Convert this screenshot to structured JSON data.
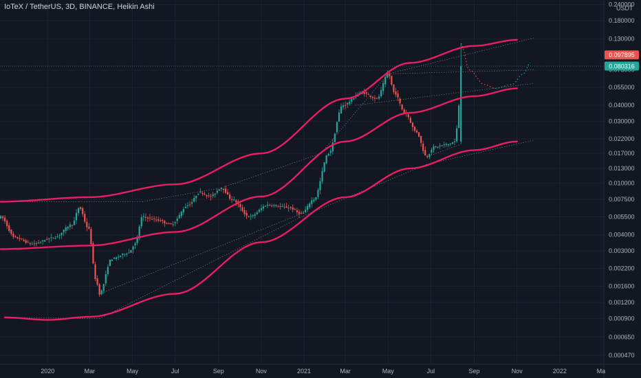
{
  "chart_title": "IoTeX / TetherUS, 3D, BINANCE, Heikin Ashi",
  "colors": {
    "background": "#131722",
    "up": "#26a69a",
    "down": "#ef5350",
    "channel": "#e91e63",
    "text": "#b2b5be"
  },
  "chart_data": {
    "type": "candlestick",
    "title": "IoTeX / TetherUS, 3D, BINANCE, Heikin Ashi",
    "y_unit": "USDT",
    "y_scale": "log",
    "ylim": [
      0.0004,
      0.26
    ],
    "y_ticks": [
      0.24,
      0.18,
      0.13,
      0.075,
      0.055,
      0.04,
      0.03,
      0.022,
      0.017,
      0.013,
      0.01,
      0.0075,
      0.0055,
      0.004,
      0.003,
      0.0022,
      0.0016,
      0.0012,
      0.0009,
      0.00065,
      0.00047
    ],
    "y_tick_labels": [
      "0.240000",
      "0.180000",
      "0.130000",
      "0.075000",
      "0.055000",
      "0.040000",
      "0.030000",
      "0.022000",
      "0.017000",
      "0.013000",
      "0.010000",
      "0.007500",
      "0.005500",
      "0.004000",
      "0.003000",
      "0.002200",
      "0.001600",
      "0.001200",
      "0.000900",
      "0.000650",
      "0.000470"
    ],
    "x_ticks": [
      "2020-01-01",
      "2020-03-01",
      "2020-05-01",
      "2020-07-01",
      "2020-09-01",
      "2020-11-01",
      "2021-01-01",
      "2021-03-01",
      "2021-05-01",
      "2021-07-01",
      "2021-09-01",
      "2021-11-01",
      "2022-01-01",
      "2022-03-01"
    ],
    "x_tick_labels": [
      "2020",
      "Mar",
      "May",
      "Jul",
      "Sep",
      "Nov",
      "2021",
      "Mar",
      "May",
      "Jul",
      "Sep",
      "Nov",
      "2022",
      "Ma"
    ],
    "xlim": [
      "2019-10-25",
      "2022-03-05"
    ],
    "price_key_points": [
      [
        "2019-10-26",
        0.0055
      ],
      [
        "2019-11-15",
        0.0038
      ],
      [
        "2019-12-10",
        0.0034
      ],
      [
        "2020-01-10",
        0.0038
      ],
      [
        "2020-02-05",
        0.0048
      ],
      [
        "2020-02-15",
        0.0065
      ],
      [
        "2020-02-28",
        0.0045
      ],
      [
        "2020-03-10",
        0.0018
      ],
      [
        "2020-03-15",
        0.0014
      ],
      [
        "2020-04-01",
        0.0026
      ],
      [
        "2020-04-25",
        0.0029
      ],
      [
        "2020-05-05",
        0.0034
      ],
      [
        "2020-05-15",
        0.0055
      ],
      [
        "2020-06-05",
        0.0052
      ],
      [
        "2020-06-25",
        0.0048
      ],
      [
        "2020-07-20",
        0.0068
      ],
      [
        "2020-08-05",
        0.0085
      ],
      [
        "2020-08-20",
        0.0079
      ],
      [
        "2020-09-05",
        0.0092
      ],
      [
        "2020-09-20",
        0.0075
      ],
      [
        "2020-10-15",
        0.0055
      ],
      [
        "2020-11-10",
        0.0068
      ],
      [
        "2020-12-10",
        0.0065
      ],
      [
        "2020-12-28",
        0.0058
      ],
      [
        "2021-01-15",
        0.0075
      ],
      [
        "2021-02-05",
        0.017
      ],
      [
        "2021-02-25",
        0.04
      ],
      [
        "2021-03-25",
        0.05
      ],
      [
        "2021-04-15",
        0.045
      ],
      [
        "2021-05-01",
        0.07
      ],
      [
        "2021-05-10",
        0.05
      ],
      [
        "2021-05-25",
        0.035
      ],
      [
        "2021-06-10",
        0.025
      ],
      [
        "2021-06-25",
        0.016
      ],
      [
        "2021-07-05",
        0.019
      ],
      [
        "2021-07-25",
        0.02
      ],
      [
        "2021-08-05",
        0.021
      ],
      [
        "2021-08-10",
        0.04
      ],
      [
        "2021-08-13",
        0.0803
      ]
    ],
    "last_candle_high": 0.12,
    "price_labels": [
      {
        "label": "0.097895",
        "value": 0.097895,
        "color": "#ef5350"
      },
      {
        "label": "0.080316",
        "value": 0.080316,
        "color": "#26a69a"
      }
    ],
    "channel_upper": [
      [
        "2019-10-26",
        0.0072
      ],
      [
        "2020-03-01",
        0.0078
      ],
      [
        "2020-07-01",
        0.0098
      ],
      [
        "2020-11-01",
        0.017
      ],
      [
        "2021-03-01",
        0.045
      ],
      [
        "2021-06-01",
        0.085
      ],
      [
        "2021-09-01",
        0.115
      ],
      [
        "2021-11-01",
        0.128
      ]
    ],
    "channel_middle": [
      [
        "2019-10-26",
        0.0031
      ],
      [
        "2020-03-01",
        0.0033
      ],
      [
        "2020-07-01",
        0.0042
      ],
      [
        "2020-11-01",
        0.0079
      ],
      [
        "2021-03-01",
        0.021
      ],
      [
        "2021-06-01",
        0.035
      ],
      [
        "2021-09-01",
        0.047
      ],
      [
        "2021-11-01",
        0.054
      ]
    ],
    "channel_lower": [
      [
        "2019-11-01",
        0.00092
      ],
      [
        "2020-01-01",
        0.00088
      ],
      [
        "2020-03-01",
        0.00093
      ],
      [
        "2020-07-01",
        0.0014
      ],
      [
        "2020-11-01",
        0.0035
      ],
      [
        "2021-03-01",
        0.0078
      ],
      [
        "2021-06-01",
        0.013
      ],
      [
        "2021-09-01",
        0.018
      ],
      [
        "2021-11-01",
        0.021
      ]
    ],
    "projection_down": [
      [
        "2021-08-13",
        0.12
      ],
      [
        "2021-08-25",
        0.075
      ],
      [
        "2021-09-15",
        0.058
      ],
      [
        "2021-10-01",
        0.054
      ]
    ],
    "projection_up": [
      [
        "2021-10-01",
        0.054
      ],
      [
        "2021-10-25",
        0.058
      ],
      [
        "2021-11-10",
        0.07
      ],
      [
        "2021-11-20",
        0.085
      ]
    ],
    "trend_lines": [
      [
        [
          "2019-10-26",
          0.0072
        ],
        [
          "2020-02-15",
          0.0072
        ]
      ],
      [
        [
          "2020-02-15",
          0.0072
        ],
        [
          "2020-05-15",
          0.0072
        ]
      ],
      [
        [
          "2020-05-15",
          0.0072
        ],
        [
          "2020-09-05",
          0.0092
        ]
      ],
      [
        [
          "2020-09-05",
          0.0092
        ],
        [
          "2021-01-25",
          0.017
        ]
      ],
      [
        [
          "2021-01-25",
          0.017
        ],
        [
          "2021-05-01",
          0.07
        ]
      ],
      [
        [
          "2021-05-01",
          0.07
        ],
        [
          "2021-11-25",
          0.132
        ]
      ],
      [
        [
          "2021-05-01",
          0.07
        ],
        [
          "2021-11-25",
          0.075
        ]
      ],
      [
        [
          "2021-03-15",
          0.04
        ],
        [
          "2021-11-25",
          0.059
        ]
      ],
      [
        [
          "2019-11-01",
          0.00092
        ],
        [
          "2020-03-15",
          0.0009
        ]
      ],
      [
        [
          "2020-03-15",
          0.0009
        ],
        [
          "2020-12-28",
          0.0055
        ]
      ],
      [
        [
          "2020-12-28",
          0.0055
        ],
        [
          "2021-06-25",
          0.014
        ]
      ],
      [
        [
          "2021-06-25",
          0.014
        ],
        [
          "2021-11-25",
          0.0215
        ]
      ],
      [
        [
          "2020-03-15",
          0.0014
        ],
        [
          "2020-12-28",
          0.0058
        ]
      ],
      [
        [
          "2021-06-25",
          0.016
        ],
        [
          "2021-08-13",
          0.02
        ]
      ]
    ]
  }
}
